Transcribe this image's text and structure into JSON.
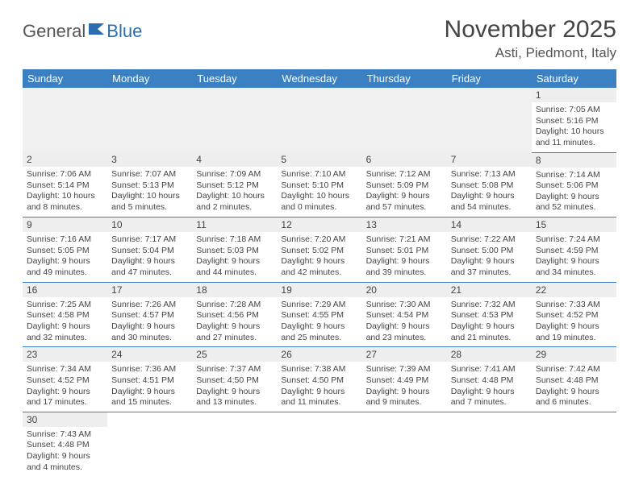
{
  "logo": {
    "part1": "General",
    "part2": "Blue"
  },
  "title": "November 2025",
  "location": "Asti, Piedmont, Italy",
  "colors": {
    "header_bg": "#3a80c2",
    "header_fg": "#ffffff",
    "daynum_bg": "#eeeeee",
    "rule": "#3a80c2",
    "logo_accent": "#2a6db0"
  },
  "weekdays": [
    "Sunday",
    "Monday",
    "Tuesday",
    "Wednesday",
    "Thursday",
    "Friday",
    "Saturday"
  ],
  "weeks": [
    [
      null,
      null,
      null,
      null,
      null,
      null,
      {
        "d": "1",
        "sr": "Sunrise: 7:05 AM",
        "ss": "Sunset: 5:16 PM",
        "dl": "Daylight: 10 hours and 11 minutes."
      }
    ],
    [
      {
        "d": "2",
        "sr": "Sunrise: 7:06 AM",
        "ss": "Sunset: 5:14 PM",
        "dl": "Daylight: 10 hours and 8 minutes."
      },
      {
        "d": "3",
        "sr": "Sunrise: 7:07 AM",
        "ss": "Sunset: 5:13 PM",
        "dl": "Daylight: 10 hours and 5 minutes."
      },
      {
        "d": "4",
        "sr": "Sunrise: 7:09 AM",
        "ss": "Sunset: 5:12 PM",
        "dl": "Daylight: 10 hours and 2 minutes."
      },
      {
        "d": "5",
        "sr": "Sunrise: 7:10 AM",
        "ss": "Sunset: 5:10 PM",
        "dl": "Daylight: 10 hours and 0 minutes."
      },
      {
        "d": "6",
        "sr": "Sunrise: 7:12 AM",
        "ss": "Sunset: 5:09 PM",
        "dl": "Daylight: 9 hours and 57 minutes."
      },
      {
        "d": "7",
        "sr": "Sunrise: 7:13 AM",
        "ss": "Sunset: 5:08 PM",
        "dl": "Daylight: 9 hours and 54 minutes."
      },
      {
        "d": "8",
        "sr": "Sunrise: 7:14 AM",
        "ss": "Sunset: 5:06 PM",
        "dl": "Daylight: 9 hours and 52 minutes."
      }
    ],
    [
      {
        "d": "9",
        "sr": "Sunrise: 7:16 AM",
        "ss": "Sunset: 5:05 PM",
        "dl": "Daylight: 9 hours and 49 minutes."
      },
      {
        "d": "10",
        "sr": "Sunrise: 7:17 AM",
        "ss": "Sunset: 5:04 PM",
        "dl": "Daylight: 9 hours and 47 minutes."
      },
      {
        "d": "11",
        "sr": "Sunrise: 7:18 AM",
        "ss": "Sunset: 5:03 PM",
        "dl": "Daylight: 9 hours and 44 minutes."
      },
      {
        "d": "12",
        "sr": "Sunrise: 7:20 AM",
        "ss": "Sunset: 5:02 PM",
        "dl": "Daylight: 9 hours and 42 minutes."
      },
      {
        "d": "13",
        "sr": "Sunrise: 7:21 AM",
        "ss": "Sunset: 5:01 PM",
        "dl": "Daylight: 9 hours and 39 minutes."
      },
      {
        "d": "14",
        "sr": "Sunrise: 7:22 AM",
        "ss": "Sunset: 5:00 PM",
        "dl": "Daylight: 9 hours and 37 minutes."
      },
      {
        "d": "15",
        "sr": "Sunrise: 7:24 AM",
        "ss": "Sunset: 4:59 PM",
        "dl": "Daylight: 9 hours and 34 minutes."
      }
    ],
    [
      {
        "d": "16",
        "sr": "Sunrise: 7:25 AM",
        "ss": "Sunset: 4:58 PM",
        "dl": "Daylight: 9 hours and 32 minutes."
      },
      {
        "d": "17",
        "sr": "Sunrise: 7:26 AM",
        "ss": "Sunset: 4:57 PM",
        "dl": "Daylight: 9 hours and 30 minutes."
      },
      {
        "d": "18",
        "sr": "Sunrise: 7:28 AM",
        "ss": "Sunset: 4:56 PM",
        "dl": "Daylight: 9 hours and 27 minutes."
      },
      {
        "d": "19",
        "sr": "Sunrise: 7:29 AM",
        "ss": "Sunset: 4:55 PM",
        "dl": "Daylight: 9 hours and 25 minutes."
      },
      {
        "d": "20",
        "sr": "Sunrise: 7:30 AM",
        "ss": "Sunset: 4:54 PM",
        "dl": "Daylight: 9 hours and 23 minutes."
      },
      {
        "d": "21",
        "sr": "Sunrise: 7:32 AM",
        "ss": "Sunset: 4:53 PM",
        "dl": "Daylight: 9 hours and 21 minutes."
      },
      {
        "d": "22",
        "sr": "Sunrise: 7:33 AM",
        "ss": "Sunset: 4:52 PM",
        "dl": "Daylight: 9 hours and 19 minutes."
      }
    ],
    [
      {
        "d": "23",
        "sr": "Sunrise: 7:34 AM",
        "ss": "Sunset: 4:52 PM",
        "dl": "Daylight: 9 hours and 17 minutes."
      },
      {
        "d": "24",
        "sr": "Sunrise: 7:36 AM",
        "ss": "Sunset: 4:51 PM",
        "dl": "Daylight: 9 hours and 15 minutes."
      },
      {
        "d": "25",
        "sr": "Sunrise: 7:37 AM",
        "ss": "Sunset: 4:50 PM",
        "dl": "Daylight: 9 hours and 13 minutes."
      },
      {
        "d": "26",
        "sr": "Sunrise: 7:38 AM",
        "ss": "Sunset: 4:50 PM",
        "dl": "Daylight: 9 hours and 11 minutes."
      },
      {
        "d": "27",
        "sr": "Sunrise: 7:39 AM",
        "ss": "Sunset: 4:49 PM",
        "dl": "Daylight: 9 hours and 9 minutes."
      },
      {
        "d": "28",
        "sr": "Sunrise: 7:41 AM",
        "ss": "Sunset: 4:48 PM",
        "dl": "Daylight: 9 hours and 7 minutes."
      },
      {
        "d": "29",
        "sr": "Sunrise: 7:42 AM",
        "ss": "Sunset: 4:48 PM",
        "dl": "Daylight: 9 hours and 6 minutes."
      }
    ],
    [
      {
        "d": "30",
        "sr": "Sunrise: 7:43 AM",
        "ss": "Sunset: 4:48 PM",
        "dl": "Daylight: 9 hours and 4 minutes."
      },
      null,
      null,
      null,
      null,
      null,
      null
    ]
  ]
}
